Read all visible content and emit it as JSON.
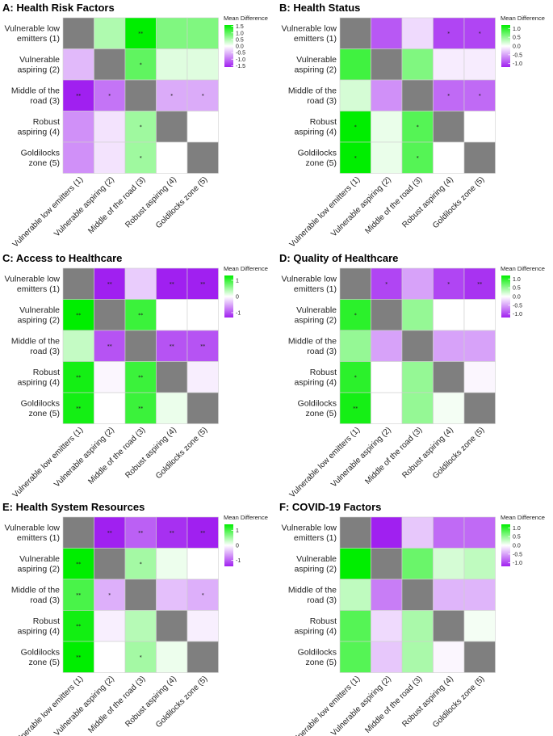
{
  "figure": {
    "row_labels": [
      [
        "Vulnerable low",
        "emitters (1)"
      ],
      [
        "Vulnerable",
        "aspiring (2)"
      ],
      [
        "Middle of the",
        "road (3)"
      ],
      [
        "Robust",
        "aspiring (4)"
      ],
      [
        "Goldilocks",
        "zone (5)"
      ]
    ],
    "column_labels": [
      "Vulnerable low emitters (1)",
      "Vulnerable aspiring (2)",
      "Middle of the road (3)",
      "Robust aspiring (4)",
      "Goldilocks zone (5)"
    ],
    "legend_title": "Mean Difference",
    "colors": {
      "low": "#a020f0",
      "mid": "#ffffff",
      "high": "#00ee00",
      "diagonal": "#7f7f7f",
      "border": "#cfcfcf"
    }
  },
  "chart_data": [
    {
      "type": "heatmap",
      "title": "A: Health Risk Factors",
      "legend_ticks": [
        1.5,
        1.0,
        0.5,
        0.0,
        -0.5,
        -1.0,
        -1.5
      ],
      "legend_tick_labels": [
        "1.5",
        "1.0",
        "0.5",
        "0.0",
        "-0.5",
        "-1.0",
        "-1.5"
      ],
      "range": [
        -1.6,
        1.6
      ],
      "values": [
        [
          null,
          0.5,
          1.6,
          0.8,
          0.8
        ],
        [
          -0.5,
          null,
          1.0,
          0.2,
          0.2
        ],
        [
          -1.6,
          -1.0,
          null,
          -0.6,
          -0.6
        ],
        [
          -0.8,
          -0.2,
          0.6,
          null,
          0.0
        ],
        [
          -0.8,
          -0.2,
          0.6,
          0.0,
          null
        ]
      ],
      "significance": [
        [
          "",
          "",
          "**",
          "",
          ""
        ],
        [
          "",
          "",
          "*",
          "",
          ""
        ],
        [
          "**",
          "*",
          "",
          "*",
          "*"
        ],
        [
          "",
          "",
          "*",
          "",
          ""
        ],
        [
          "",
          "",
          "*",
          "",
          ""
        ]
      ]
    },
    {
      "type": "heatmap",
      "title": "B: Health Status",
      "legend_ticks": [
        1.0,
        0.5,
        0.0,
        -0.5,
        -1.0
      ],
      "legend_tick_labels": [
        "1.0",
        "0.5",
        "0.0",
        "-0.5",
        "-1.0"
      ],
      "range": [
        -1.2,
        1.2
      ],
      "values": [
        [
          null,
          -0.9,
          -0.2,
          -1.0,
          -1.0
        ],
        [
          0.9,
          null,
          0.6,
          -0.1,
          -0.1
        ],
        [
          0.2,
          -0.6,
          null,
          -0.8,
          -0.8
        ],
        [
          1.2,
          0.1,
          0.8,
          null,
          0.0
        ],
        [
          1.2,
          0.1,
          0.8,
          0.0,
          null
        ]
      ],
      "significance": [
        [
          "",
          "",
          "",
          "*",
          "*"
        ],
        [
          "",
          "",
          "",
          "",
          ""
        ],
        [
          "",
          "",
          "",
          "*",
          "*"
        ],
        [
          "*",
          "",
          "*",
          "",
          ""
        ],
        [
          "*",
          "",
          "*",
          "",
          ""
        ]
      ]
    },
    {
      "type": "heatmap",
      "title": "C: Access to Healthcare",
      "legend_ticks": [
        1,
        0,
        -1
      ],
      "legend_tick_labels": [
        "1",
        "0",
        "-1"
      ],
      "range": [
        -1.3,
        1.3
      ],
      "values": [
        [
          null,
          -1.3,
          -0.3,
          -1.3,
          -1.3
        ],
        [
          1.3,
          null,
          1.0,
          0.0,
          0.0
        ],
        [
          0.3,
          -1.0,
          null,
          -1.0,
          -1.0
        ],
        [
          1.2,
          -0.05,
          1.0,
          null,
          -0.1
        ],
        [
          1.2,
          0.0,
          1.0,
          0.1,
          null
        ]
      ],
      "significance": [
        [
          "",
          "**",
          "",
          "**",
          "**"
        ],
        [
          "**",
          "",
          "**",
          "",
          ""
        ],
        [
          "",
          "**",
          "",
          "**",
          "**"
        ],
        [
          "**",
          "",
          "**",
          "",
          ""
        ],
        [
          "**",
          "",
          "**",
          "",
          ""
        ]
      ]
    },
    {
      "type": "heatmap",
      "title": "D: Quality of Healthcare",
      "legend_ticks": [
        1.0,
        0.5,
        0.0,
        -0.5,
        -1.0
      ],
      "legend_tick_labels": [
        "1.0",
        "0.5",
        "0.0",
        "-0.5",
        "-1.0"
      ],
      "range": [
        -1.2,
        1.2
      ],
      "values": [
        [
          null,
          -1.0,
          -0.5,
          -1.0,
          -1.1
        ],
        [
          1.0,
          null,
          0.5,
          0.0,
          0.0
        ],
        [
          0.5,
          -0.5,
          null,
          -0.5,
          -0.5
        ],
        [
          1.0,
          0.0,
          0.5,
          null,
          -0.05
        ],
        [
          1.1,
          0.0,
          0.5,
          0.05,
          null
        ]
      ],
      "significance": [
        [
          "",
          "*",
          "",
          "*",
          "**"
        ],
        [
          "*",
          "",
          "",
          "",
          ""
        ],
        [
          "",
          "",
          "",
          "",
          ""
        ],
        [
          "*",
          "",
          "",
          "",
          ""
        ],
        [
          "**",
          "",
          "",
          "",
          ""
        ]
      ]
    },
    {
      "type": "heatmap",
      "title": "E: Health System Resources",
      "legend_ticks": [
        1,
        0,
        -1
      ],
      "legend_tick_labels": [
        "1",
        "0",
        "-1"
      ],
      "range": [
        -1.4,
        1.4
      ],
      "values": [
        [
          null,
          -1.4,
          -1.0,
          -1.3,
          -1.4
        ],
        [
          1.4,
          null,
          0.5,
          0.1,
          0.0
        ],
        [
          1.0,
          -0.5,
          null,
          -0.4,
          -0.5
        ],
        [
          1.3,
          -0.1,
          0.4,
          null,
          -0.1
        ],
        [
          1.4,
          0.0,
          0.5,
          0.1,
          null
        ]
      ],
      "significance": [
        [
          "",
          "**",
          "**",
          "**",
          "**"
        ],
        [
          "**",
          "",
          "*",
          "",
          ""
        ],
        [
          "**",
          "*",
          "",
          "",
          "*"
        ],
        [
          "**",
          "",
          "",
          "",
          ""
        ],
        [
          "**",
          "",
          "*",
          "",
          ""
        ]
      ]
    },
    {
      "type": "heatmap",
      "title": "F: COVID-19 Factors",
      "legend_ticks": [
        1.0,
        0.5,
        0.0,
        -0.5,
        -1.0
      ],
      "legend_tick_labels": [
        "1.0",
        "0.5",
        "0.0",
        "-0.5",
        "-1.0"
      ],
      "range": [
        -1.2,
        1.2
      ],
      "values": [
        [
          null,
          -1.2,
          -0.3,
          -0.8,
          -0.8
        ],
        [
          1.2,
          null,
          0.7,
          0.2,
          0.3
        ],
        [
          0.3,
          -0.7,
          null,
          -0.4,
          -0.4
        ],
        [
          0.8,
          -0.2,
          0.4,
          null,
          0.05
        ],
        [
          0.8,
          -0.3,
          0.4,
          -0.05,
          null
        ]
      ],
      "significance": [
        [
          "",
          "",
          "",
          "",
          ""
        ],
        [
          "",
          "",
          "",
          "",
          ""
        ],
        [
          "",
          "",
          "",
          "",
          ""
        ],
        [
          "",
          "",
          "",
          "",
          ""
        ],
        [
          "",
          "",
          "",
          "",
          ""
        ]
      ]
    }
  ]
}
